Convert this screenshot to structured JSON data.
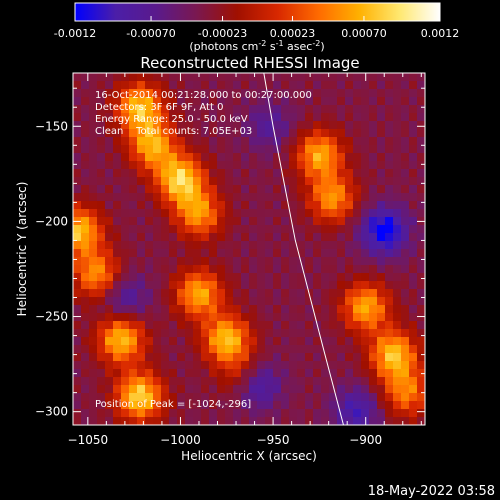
{
  "colorbar": {
    "tick_labels": [
      "-0.0012",
      "-0.00070",
      "-0.00023",
      "0.00023",
      "0.00070",
      "0.0012"
    ],
    "tick_values": [
      -0.0012,
      -0.0007,
      -0.00023,
      0.00023,
      0.0007,
      0.0012
    ],
    "range": [
      -0.0012,
      0.0012
    ],
    "unit_text": "(photons cm",
    "unit_exp1": "-2",
    "unit_mid": " s",
    "unit_exp2": "-1",
    "unit_mid2": " asec",
    "unit_exp3": "-2",
    "unit_end": ")",
    "colormap_stops": [
      "#0000ff",
      "#4b1ea8",
      "#5a1a8c",
      "#7a1850",
      "#a01000",
      "#d82800",
      "#ff6a00",
      "#ffb000",
      "#ffe870",
      "#ffffff"
    ]
  },
  "header": {
    "title": "Reconstructed RHESSI Image",
    "time_range": "16-Oct-2014 00:21:28.000 to 00:27:00.000",
    "detectors": "Detectors: 3F 6F 9F, Att 0",
    "energy": "Energy Range: 25.0 - 50.0 keV",
    "clean": "Clean    Total counts: 7.05E+03",
    "peak": "Position of Peak = [-1024,-296]"
  },
  "footer": {
    "date": "18-May-2022 03:58"
  },
  "chart_data": {
    "type": "heatmap",
    "title": "Reconstructed RHESSI Image",
    "xlabel": "Heliocentric X (arcsec)",
    "ylabel": "Heliocentric Y (arcsec)",
    "xlim": [
      -1058,
      -868
    ],
    "ylim": [
      -307,
      -122
    ],
    "x_ticks": [
      -1050,
      -1000,
      -950,
      -900
    ],
    "x_tick_labels": [
      "−1050",
      "−1000",
      "−950",
      "−900"
    ],
    "y_ticks": [
      -300,
      -250,
      -200,
      -150
    ],
    "y_tick_labels": [
      "−300",
      "−250",
      "−200",
      "−150"
    ],
    "grid": false,
    "value_range": [
      -0.0012,
      0.0012
    ],
    "peak": [
      -1024,
      -296
    ],
    "limb_curve": [
      [
        -955,
        -122
      ],
      [
        -950,
        -150
      ],
      [
        -944,
        -180
      ],
      [
        -938,
        -210
      ],
      [
        -930,
        -240
      ],
      [
        -922,
        -270
      ],
      [
        -912,
        -307
      ]
    ],
    "sources": [
      {
        "x": -1022,
        "y": -140,
        "amp": 0.0011
      },
      {
        "x": -1015,
        "y": -160,
        "amp": 0.001
      },
      {
        "x": -1000,
        "y": -178,
        "amp": 0.0012
      },
      {
        "x": -990,
        "y": -196,
        "amp": 0.0009
      },
      {
        "x": -1055,
        "y": -205,
        "amp": 0.0011
      },
      {
        "x": -1045,
        "y": -228,
        "amp": 0.0009
      },
      {
        "x": -1032,
        "y": -262,
        "amp": 0.0011
      },
      {
        "x": -1022,
        "y": -292,
        "amp": 0.0012
      },
      {
        "x": -990,
        "y": -238,
        "amp": 0.001
      },
      {
        "x": -975,
        "y": -262,
        "amp": 0.0011
      },
      {
        "x": -965,
        "y": -282,
        "amp": 0.0008
      },
      {
        "x": -925,
        "y": -165,
        "amp": 0.001
      },
      {
        "x": -918,
        "y": -188,
        "amp": 0.0009
      },
      {
        "x": -900,
        "y": -245,
        "amp": 0.001
      },
      {
        "x": -885,
        "y": -270,
        "amp": 0.0011
      },
      {
        "x": -878,
        "y": -290,
        "amp": 0.0008
      }
    ],
    "negative_regions": [
      {
        "x": -890,
        "y": -205,
        "amp": -0.0009
      },
      {
        "x": -960,
        "y": -285,
        "amp": -0.001
      },
      {
        "x": -905,
        "y": -300,
        "amp": -0.0006
      },
      {
        "x": -1030,
        "y": -240,
        "amp": -0.0005
      },
      {
        "x": -952,
        "y": -150,
        "amp": -0.0004
      }
    ]
  }
}
